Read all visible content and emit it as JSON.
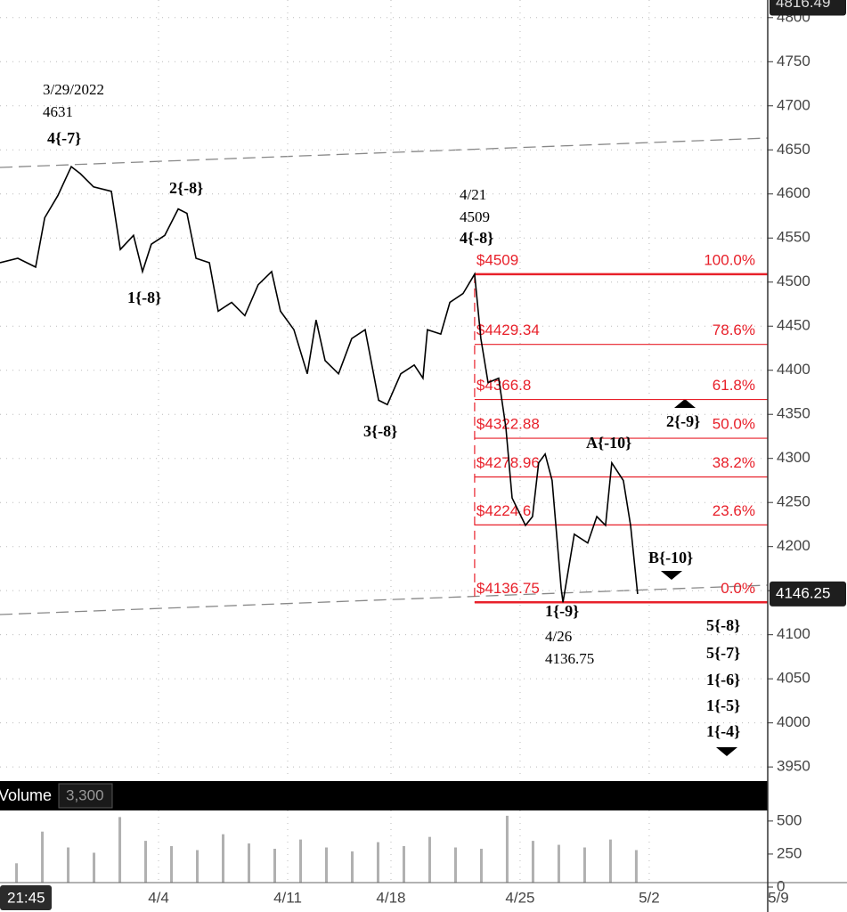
{
  "chart_data": [
    {
      "type": "line",
      "color": "#000000",
      "x": [
        -1.14,
        -0.45,
        0.24,
        0.59,
        1.1,
        1.62,
        1.97,
        2.48,
        3.17,
        3.52,
        4.03,
        4.38,
        4.72,
        5.24,
        5.76,
        6.1,
        6.45,
        6.97,
        7.31,
        7.83,
        8.34,
        8.86,
        9.38,
        9.72,
        10.24,
        10.76,
        11.1,
        11.45,
        11.97,
        12.48,
        13.0,
        13.52,
        13.86,
        14.38,
        14.9,
        15.24,
        15.41,
        15.93,
        16.28,
        16.79,
        17.24,
        17.48,
        17.76,
        18.17,
        18.45,
        18.69,
        19.21,
        19.48,
        19.72,
        19.97,
        20.24,
        20.59,
        20.66,
        21.1,
        21.62,
        21.97,
        22.31,
        22.55,
        23.0,
        23.28,
        23.55
      ],
      "values": [
        4522,
        4527,
        4517,
        4573,
        4598,
        4631,
        4623,
        4608,
        4603,
        4537,
        4553,
        4512,
        4543,
        4553,
        4583,
        4578,
        4527,
        4522,
        4467,
        4477,
        4462,
        4497,
        4512,
        4467,
        4446,
        4396,
        4457,
        4411,
        4396,
        4436,
        4446,
        4366,
        4361,
        4396,
        4406,
        4391,
        4446,
        4441,
        4477,
        4487,
        4509,
        4436,
        4386,
        4391,
        4335,
        4255,
        4224,
        4234,
        4295,
        4305,
        4275,
        4153,
        4136.75,
        4214,
        4204,
        4234,
        4224,
        4295,
        4275,
        4224,
        4146.25
      ],
      "xlim": [
        -1.14,
        28.59
      ],
      "ylim": [
        3936,
        4820
      ],
      "yticks": [
        3950,
        4000,
        4050,
        4100,
        4150,
        4200,
        4250,
        4300,
        4350,
        4400,
        4450,
        4500,
        4550,
        4600,
        4650,
        4700,
        4750,
        4800
      ],
      "xticks": [
        {
          "value": 5,
          "label": "4/4"
        },
        {
          "value": 10,
          "label": "4/11"
        },
        {
          "value": 14,
          "label": "4/18"
        },
        {
          "value": 19,
          "label": "4/25"
        },
        {
          "value": 24,
          "label": "5/2"
        },
        {
          "value": 29,
          "label": "5/9"
        }
      ],
      "grid": true,
      "fib_color": "#e8202a",
      "fib_levels": [
        {
          "value": 4509,
          "label": "$4509",
          "percent": "100.0%"
        },
        {
          "value": 4429.34,
          "label": "$4429.34",
          "percent": "78.6%"
        },
        {
          "value": 4366.8,
          "label": "$4366.8",
          "percent": "61.8%"
        },
        {
          "value": 4322.88,
          "label": "$4322.88",
          "percent": "50.0%"
        },
        {
          "value": 4278.96,
          "label": "$4278.96",
          "percent": "38.2%"
        },
        {
          "value": 4224.6,
          "label": "$4224.6",
          "percent": "23.6%"
        },
        {
          "value": 4136.75,
          "label": "$4136.75",
          "percent": "0.0%"
        }
      ],
      "annotations": [
        "3/29/2022",
        "4631",
        "4{-7}",
        "2{-8}",
        "1{-8}",
        "3{-8}",
        "4/21",
        "4509",
        "4{-8}",
        "A{-10}",
        "2{-9}",
        "B{-10}",
        "1{-9}",
        "4/26",
        "4136.75",
        "5{-8}",
        "5{-7}",
        "1{-6}",
        "1{-5}",
        "1{-4}"
      ],
      "last_price": 4146.25,
      "high_price": 4816.49,
      "cursor_label": "21:45"
    },
    {
      "type": "bar",
      "title": "Volume",
      "subtitle": "3,300",
      "color": "#b0b0b0",
      "x": [
        -0.5,
        0.5,
        1.5,
        2.5,
        3.5,
        4.5,
        5.5,
        6.5,
        7.5,
        8.5,
        9.5,
        10.5,
        11.5,
        12.5,
        13.5,
        14.5,
        15.5,
        16.5,
        17.5,
        18.5,
        19.5,
        20.5,
        21.5,
        22.5,
        23.5
      ],
      "values": [
        180,
        420,
        300,
        260,
        530,
        350,
        310,
        280,
        400,
        330,
        290,
        360,
        300,
        270,
        340,
        310,
        380,
        300,
        290,
        540,
        350,
        320,
        300,
        360,
        280
      ],
      "ylim": [
        0,
        580
      ],
      "yticks": [
        0,
        250,
        500
      ]
    }
  ]
}
